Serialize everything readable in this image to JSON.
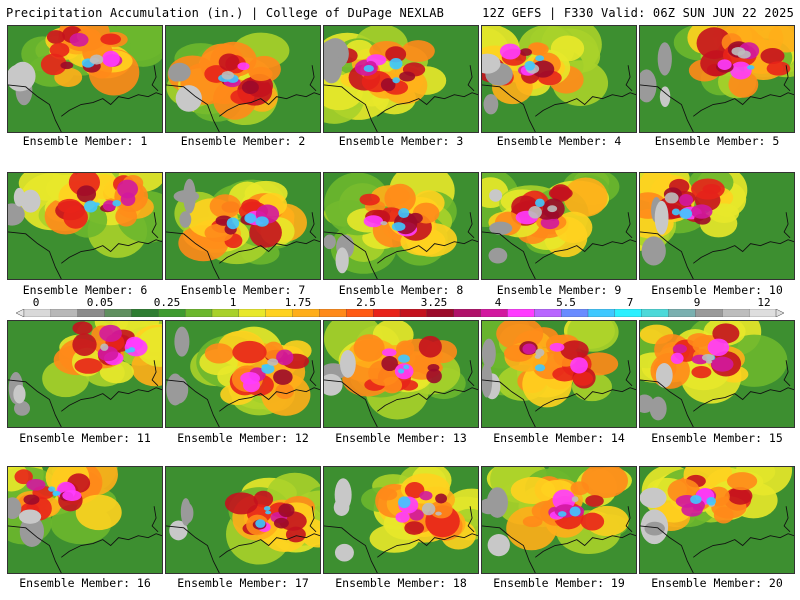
{
  "header": {
    "left_title": "Precipitation Accumulation (in.) | College of DuPage NEXLAB",
    "right_title": "12Z GEFS | F330 Valid: 06Z SUN JUN 22 2025"
  },
  "panels": [
    {
      "label": "Ensemble Member: 1"
    },
    {
      "label": "Ensemble Member: 2"
    },
    {
      "label": "Ensemble Member: 3"
    },
    {
      "label": "Ensemble Member: 4"
    },
    {
      "label": "Ensemble Member: 5"
    },
    {
      "label": "Ensemble Member: 6"
    },
    {
      "label": "Ensemble Member: 7"
    },
    {
      "label": "Ensemble Member: 8"
    },
    {
      "label": "Ensemble Member: 9"
    },
    {
      "label": "Ensemble Member: 10"
    },
    {
      "label": "Ensemble Member: 11"
    },
    {
      "label": "Ensemble Member: 12"
    },
    {
      "label": "Ensemble Member: 13"
    },
    {
      "label": "Ensemble Member: 14"
    },
    {
      "label": "Ensemble Member: 15"
    },
    {
      "label": "Ensemble Member: 16"
    },
    {
      "label": "Ensemble Member: 17"
    },
    {
      "label": "Ensemble Member: 18"
    },
    {
      "label": "Ensemble Member: 19"
    },
    {
      "label": "Ensemble Member: 20"
    }
  ],
  "colorbar": {
    "tick_labels": [
      "0",
      "0.05",
      "0.25",
      "1",
      "1.75",
      "2.5",
      "3.25",
      "4",
      "5.5",
      "7",
      "9",
      "12"
    ],
    "colors": [
      "#d9d9d9",
      "#b8b8b8",
      "#8c8c8c",
      "#5f8f5f",
      "#2e7d32",
      "#3f9b2f",
      "#6cb72d",
      "#a8d12a",
      "#e8e82a",
      "#ffd21f",
      "#ffae1a",
      "#ff8a1a",
      "#ff5a14",
      "#e8231a",
      "#c4121e",
      "#9c0a2a",
      "#b0126a",
      "#d2189f",
      "#ff3cff",
      "#b866ff",
      "#6a8cff",
      "#3fc8ff",
      "#2bf0ff",
      "#4cd9d9",
      "#7ab0b0",
      "#9a9a9a",
      "#bdbdbd",
      "#dedede"
    ]
  }
}
